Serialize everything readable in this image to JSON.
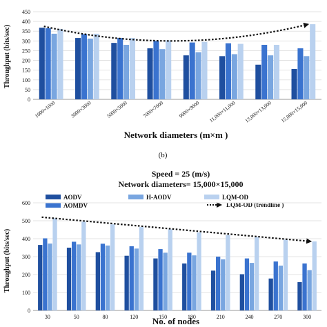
{
  "colors": {
    "s1": "#1f4f9f",
    "s2": "#3a73cf",
    "s3": "#79a6e0",
    "s4": "#b9d1ef",
    "trend": "#111111",
    "grid": "#e3e3e3"
  },
  "chart_data": [
    {
      "type": "bar",
      "title": "",
      "xlabel": "Network diameters (m×m )",
      "ylabel": "Throughput (bits/sec)",
      "ylim": [
        0,
        450
      ],
      "yticks": [
        "0",
        "50",
        "100",
        "150",
        "200",
        "250",
        "300",
        "350",
        "400",
        "450"
      ],
      "categories": [
        "1000×1000",
        "3000×3000",
        "5000×5000",
        "7000×7000",
        "9000×9000",
        "11,000×11,000",
        "13,000×13,000",
        "15,000×15,000"
      ],
      "series": [
        {
          "values": [
            368,
            315,
            290,
            262,
            226,
            222,
            178,
            156
          ]
        },
        {
          "values": [
            365,
            335,
            315,
            300,
            292,
            288,
            280,
            262
          ]
        },
        {
          "values": [
            337,
            312,
            280,
            258,
            242,
            232,
            226,
            222
          ]
        },
        {
          "values": [
            362,
            337,
            315,
            303,
            295,
            285,
            280,
            386
          ]
        }
      ],
      "trendline": {
        "from": 375,
        "via": 300,
        "to": 385
      },
      "grid": true,
      "caption": "(b)"
    },
    {
      "type": "bar",
      "title": "Speed = 25 (m/s)",
      "subtitle": "Network diameters= 15,000×15,000",
      "xlabel": "No. of nodes",
      "ylabel": "Throughput (bits/sec)",
      "ylim": [
        0,
        600
      ],
      "yticks": [
        "0",
        "100",
        "200",
        "300",
        "400",
        "500",
        "600"
      ],
      "categories": [
        "30",
        "50",
        "80",
        "120",
        "150",
        "180",
        "210",
        "240",
        "270",
        "300"
      ],
      "series": [
        {
          "name": "AODV",
          "values": [
            365,
            350,
            325,
            305,
            290,
            262,
            222,
            202,
            178,
            158
          ]
        },
        {
          "name": "AOMDV",
          "values": [
            402,
            383,
            372,
            358,
            342,
            322,
            300,
            290,
            273,
            262
          ]
        },
        {
          "name": "H-AODV",
          "values": [
            373,
            368,
            362,
            345,
            322,
            307,
            285,
            265,
            250,
            225
          ]
        },
        {
          "name": "LQM-OD",
          "values": [
            515,
            495,
            480,
            465,
            452,
            435,
            420,
            410,
            395,
            385
          ]
        }
      ],
      "trendline": {
        "name": "LQM-OD  (trendline )",
        "from": 520,
        "to": 385
      },
      "legend_position": "top",
      "grid": true
    }
  ]
}
